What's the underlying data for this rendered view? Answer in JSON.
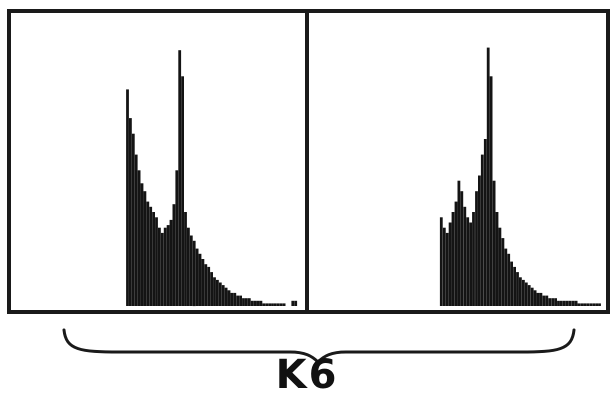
{
  "figure_label": "K6",
  "colors": {
    "ink": "#141414",
    "frame": "#1a1a1a",
    "background": "#ffffff"
  },
  "chart_data": [
    {
      "type": "bar",
      "name": "left-histogram",
      "xlim": [
        0,
        100
      ],
      "ylim": [
        0,
        100
      ],
      "grid": false,
      "legend": "none",
      "x": [
        39,
        40,
        41,
        42,
        43,
        44,
        45,
        46,
        47,
        48,
        49,
        50,
        51,
        52,
        53,
        54,
        55,
        56,
        57,
        58,
        59,
        60,
        61,
        62,
        63,
        64,
        65,
        66,
        67,
        68,
        69,
        70,
        71,
        72,
        73,
        74,
        75,
        76,
        77,
        78,
        79,
        80,
        81,
        82,
        83,
        84,
        85,
        86,
        87,
        88,
        89,
        90,
        91,
        92,
        93,
        94,
        95,
        96,
        97,
        98
      ],
      "values": [
        83,
        72,
        66,
        58,
        52,
        47,
        44,
        40,
        38,
        36,
        34,
        30,
        28,
        30,
        31,
        33,
        39,
        52,
        98,
        88,
        36,
        30,
        27,
        25,
        22,
        20,
        18,
        16,
        15,
        13,
        11,
        10,
        9,
        8,
        7,
        6,
        5,
        5,
        4,
        4,
        3,
        3,
        3,
        2,
        2,
        2,
        2,
        1,
        1,
        1,
        1,
        1,
        1,
        1,
        1,
        0,
        0,
        2,
        2,
        0
      ]
    },
    {
      "type": "bar",
      "name": "right-histogram",
      "xlim": [
        0,
        100
      ],
      "ylim": [
        0,
        100
      ],
      "grid": false,
      "legend": "none",
      "x": [
        44,
        45,
        46,
        47,
        48,
        49,
        50,
        51,
        52,
        53,
        54,
        55,
        56,
        57,
        58,
        59,
        60,
        61,
        62,
        63,
        64,
        65,
        66,
        67,
        68,
        69,
        70,
        71,
        72,
        73,
        74,
        75,
        76,
        77,
        78,
        79,
        80,
        81,
        82,
        83,
        84,
        85,
        86,
        87,
        88,
        89,
        90,
        91,
        92,
        93,
        94,
        95,
        96,
        97,
        98
      ],
      "values": [
        34,
        30,
        28,
        32,
        36,
        40,
        48,
        44,
        38,
        34,
        32,
        36,
        44,
        50,
        58,
        64,
        99,
        88,
        48,
        36,
        30,
        26,
        22,
        20,
        17,
        15,
        13,
        11,
        10,
        9,
        8,
        7,
        6,
        5,
        5,
        4,
        4,
        3,
        3,
        3,
        2,
        2,
        2,
        2,
        2,
        2,
        2,
        1,
        1,
        1,
        1,
        1,
        1,
        1,
        1
      ]
    }
  ]
}
